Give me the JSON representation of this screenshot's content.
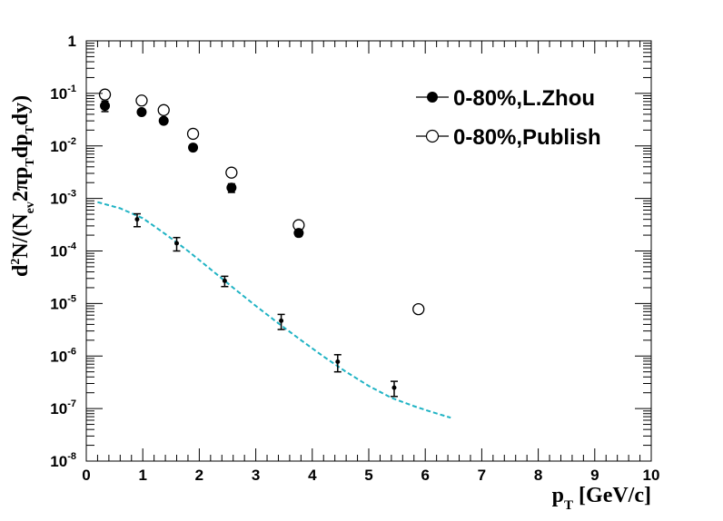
{
  "chart_data": {
    "type": "scatter",
    "xlabel": "p_T [GeV/c]",
    "ylabel": "d²N/(N_ev 2πp_T dp_T dy)",
    "xlim": [
      0,
      10
    ],
    "ylim": [
      1e-08,
      1
    ],
    "log_y": true,
    "grid": false,
    "legend_position": "top-right",
    "x_ticks": [
      "0",
      "1",
      "2",
      "3",
      "4",
      "5",
      "6",
      "7",
      "8",
      "9",
      "10"
    ],
    "y_ticks": [
      {
        "value": 1e-08,
        "base": "10",
        "exp": "-8"
      },
      {
        "value": 1e-07,
        "base": "10",
        "exp": "-7"
      },
      {
        "value": 1e-06,
        "base": "10",
        "exp": "-6"
      },
      {
        "value": 1e-05,
        "base": "10",
        "exp": "-5"
      },
      {
        "value": 0.0001,
        "base": "10",
        "exp": "-4"
      },
      {
        "value": 0.001,
        "base": "10",
        "exp": "-3"
      },
      {
        "value": 0.01,
        "base": "10",
        "exp": "-2"
      },
      {
        "value": 0.1,
        "base": "10",
        "exp": "-1"
      },
      {
        "value": 1,
        "base": "1",
        "exp": ""
      }
    ],
    "series": [
      {
        "name": "0-80%,L.Zhou",
        "marker": "filled-circle",
        "color": "#000000",
        "points": [
          {
            "x": 0.33,
            "y": 0.058,
            "err_lo": 0.013,
            "err_hi": 0.013
          },
          {
            "x": 0.98,
            "y": 0.044
          },
          {
            "x": 1.37,
            "y": 0.03
          },
          {
            "x": 1.89,
            "y": 0.0093
          },
          {
            "x": 2.57,
            "y": 0.0016,
            "err_lo": 0.0003,
            "err_hi": 0.0003
          },
          {
            "x": 3.76,
            "y": 0.00022,
            "err_lo": 3e-05,
            "err_hi": 3e-05
          }
        ]
      },
      {
        "name": "0-80%,Publish",
        "marker": "open-circle",
        "color": "#000000",
        "points": [
          {
            "x": 0.33,
            "y": 0.095
          },
          {
            "x": 0.98,
            "y": 0.073
          },
          {
            "x": 1.37,
            "y": 0.048
          },
          {
            "x": 1.89,
            "y": 0.017
          },
          {
            "x": 2.57,
            "y": 0.0031
          },
          {
            "x": 3.76,
            "y": 0.00031
          },
          {
            "x": 5.88,
            "y": 7.8e-06
          }
        ]
      },
      {
        "marker": "small-dot",
        "color": "#000000",
        "points": [
          {
            "x": 0.9,
            "y": 0.0004,
            "err_lo": 0.00011,
            "err_hi": 0.00011
          },
          {
            "x": 1.6,
            "y": 0.00014,
            "err_lo": 4e-05,
            "err_hi": 4e-05
          },
          {
            "x": 2.45,
            "y": 2.7e-05,
            "err_lo": 6e-06,
            "err_hi": 6e-06
          },
          {
            "x": 3.45,
            "y": 4.7e-06,
            "err_lo": 1.5e-06,
            "err_hi": 1.5e-06
          },
          {
            "x": 4.45,
            "y": 7.8e-07,
            "err_lo": 2.8e-07,
            "err_hi": 2.8e-07
          },
          {
            "x": 5.45,
            "y": 2.5e-07,
            "err_lo": 8e-08,
            "err_hi": 8e-08
          }
        ]
      },
      {
        "type": "line",
        "style": "dashed",
        "color": "#1fb3c4",
        "points": [
          {
            "x": 0.2,
            "y": 0.00085
          },
          {
            "x": 0.6,
            "y": 0.00065
          },
          {
            "x": 1.0,
            "y": 0.00042
          },
          {
            "x": 1.4,
            "y": 0.00021
          },
          {
            "x": 1.8,
            "y": 0.0001
          },
          {
            "x": 2.2,
            "y": 4.5e-05
          },
          {
            "x": 2.6,
            "y": 2e-05
          },
          {
            "x": 3.0,
            "y": 9e-06
          },
          {
            "x": 3.4,
            "y": 4.2e-06
          },
          {
            "x": 3.8,
            "y": 2e-06
          },
          {
            "x": 4.2,
            "y": 9.8e-07
          },
          {
            "x": 4.6,
            "y": 5e-07
          },
          {
            "x": 5.0,
            "y": 2.7e-07
          },
          {
            "x": 5.4,
            "y": 1.6e-07
          },
          {
            "x": 5.8,
            "y": 1.11e-07
          },
          {
            "x": 6.1,
            "y": 8.7e-08
          },
          {
            "x": 6.45,
            "y": 6.7e-08
          }
        ]
      }
    ]
  }
}
